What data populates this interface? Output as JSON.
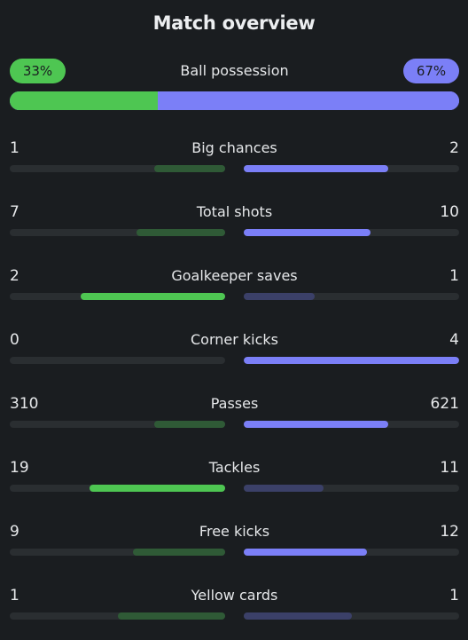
{
  "title": "Match overview",
  "possession": {
    "label": "Ball possession",
    "home_label": "33%",
    "away_label": "67%",
    "home_pct": 33,
    "away_pct": 67
  },
  "colors": {
    "home": "#4ec652",
    "home_dim": "#2f5a36",
    "away": "#7b7ff7",
    "away_dim": "#3b4068",
    "track": "#2a2e31"
  },
  "stats": [
    {
      "label": "Big chances",
      "home": "1",
      "away": "2",
      "home_share": 0.33,
      "away_share": 0.67,
      "leader": "away"
    },
    {
      "label": "Total shots",
      "home": "7",
      "away": "10",
      "home_share": 0.41,
      "away_share": 0.59,
      "leader": "away"
    },
    {
      "label": "Goalkeeper saves",
      "home": "2",
      "away": "1",
      "home_share": 0.67,
      "away_share": 0.33,
      "leader": "home"
    },
    {
      "label": "Corner kicks",
      "home": "0",
      "away": "4",
      "home_share": 0.0,
      "away_share": 1.0,
      "leader": "away"
    },
    {
      "label": "Passes",
      "home": "310",
      "away": "621",
      "home_share": 0.33,
      "away_share": 0.67,
      "leader": "away"
    },
    {
      "label": "Tackles",
      "home": "19",
      "away": "11",
      "home_share": 0.63,
      "away_share": 0.37,
      "leader": "home"
    },
    {
      "label": "Free kicks",
      "home": "9",
      "away": "12",
      "home_share": 0.43,
      "away_share": 0.57,
      "leader": "away"
    },
    {
      "label": "Yellow cards",
      "home": "1",
      "away": "1",
      "home_share": 0.5,
      "away_share": 0.5,
      "leader": "none"
    }
  ]
}
